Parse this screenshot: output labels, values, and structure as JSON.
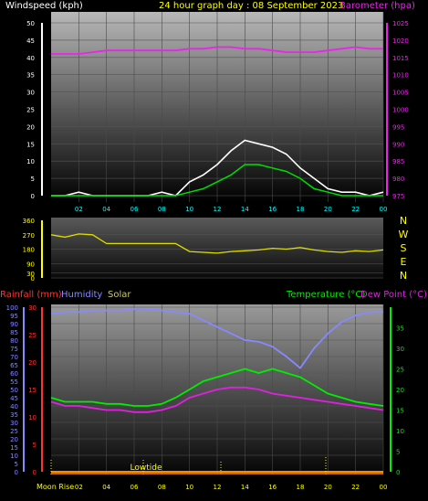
{
  "header": {
    "wind_label": "Windspeed (kph)",
    "title": "24 hour graph day : 08 September 2023",
    "baro_label": "Barometer (hpa)"
  },
  "panel3_labels": {
    "rain": "Rainfall (mm)",
    "humidity": "Humidity",
    "solar": "Solar",
    "temp": "Temperature (°C)",
    "dew": "Dew Point (°C)"
  },
  "x_ticks": [
    "02",
    "04",
    "06",
    "08",
    "10",
    "12",
    "14",
    "16",
    "18",
    "20",
    "22",
    "00"
  ],
  "bottom": {
    "moon_rise": "Moon Rise",
    "lowtide": "Lowtide",
    "x_ticks": [
      "02",
      "04",
      "06",
      "08",
      "10",
      "12",
      "14",
      "16",
      "18",
      "20",
      "22",
      "00"
    ]
  },
  "compass": [
    "N",
    "W",
    "S",
    "E",
    "N"
  ],
  "colors": {
    "wind_avg": "#00dd00",
    "gust": "#ffffff",
    "barometer": "#ee22ee",
    "direction": "#dddd00",
    "rain": "#ff3333",
    "humidity": "#8888ff",
    "solar": "#cccc66",
    "temperature": "#00ee00",
    "dewpoint": "#dd22dd"
  },
  "chart_data": [
    {
      "type": "line",
      "title": "24 hour graph day : 08 September 2023",
      "ylabel": "Windspeed (kph)",
      "y2label": "Barometer (hpa)",
      "ylim": [
        0,
        50
      ],
      "y2lim": [
        975,
        1025
      ],
      "yticks": [
        0,
        5,
        10,
        15,
        20,
        25,
        30,
        35,
        40,
        45,
        50
      ],
      "y2ticks": [
        975,
        980,
        985,
        990,
        995,
        1000,
        1005,
        1010,
        1015,
        1020,
        1025
      ],
      "x_hours": [
        0,
        1,
        2,
        3,
        4,
        5,
        6,
        7,
        8,
        9,
        10,
        11,
        12,
        13,
        14,
        15,
        16,
        17,
        18,
        19,
        20,
        21,
        22,
        23,
        24
      ],
      "series": [
        {
          "name": "Windspeed (kph)",
          "axis": "left",
          "values": [
            0,
            0,
            0,
            0,
            0,
            0,
            0,
            0,
            0,
            0,
            1,
            2,
            4,
            6,
            9,
            9,
            8,
            7,
            5,
            2,
            1,
            0,
            0,
            0,
            0
          ]
        },
        {
          "name": "Gust",
          "axis": "left",
          "values": [
            0,
            0,
            1,
            0,
            0,
            0,
            0,
            0,
            1,
            0,
            4,
            6,
            9,
            13,
            16,
            15,
            14,
            12,
            8,
            5,
            2,
            1,
            1,
            0,
            1
          ]
        },
        {
          "name": "Barometer (hpa)",
          "axis": "right",
          "values": [
            1016,
            1016,
            1016,
            1016.5,
            1017,
            1017,
            1017,
            1017,
            1017,
            1017,
            1017.5,
            1017.5,
            1018,
            1018,
            1017.5,
            1017.5,
            1017,
            1016.5,
            1016.5,
            1016.5,
            1017,
            1017.5,
            1018,
            1017.5,
            1017.5
          ]
        }
      ]
    },
    {
      "type": "line",
      "ylim": [
        0,
        360
      ],
      "yticks": [
        0,
        30,
        90,
        180,
        270,
        360
      ],
      "x_hours": [
        0,
        1,
        2,
        3,
        4,
        5,
        6,
        7,
        8,
        9,
        10,
        11,
        12,
        13,
        14,
        15,
        16,
        17,
        18,
        19,
        20,
        21,
        22,
        23,
        24
      ],
      "series": [
        {
          "name": "Wind direction",
          "values": [
            270,
            255,
            275,
            270,
            215,
            215,
            215,
            215,
            215,
            215,
            165,
            160,
            155,
            165,
            170,
            175,
            185,
            180,
            190,
            175,
            165,
            160,
            170,
            165,
            175
          ]
        }
      ]
    },
    {
      "type": "line",
      "ylim_left": [
        0,
        100
      ],
      "ylim_rain": [
        0,
        30
      ],
      "ylim_right": [
        0,
        40
      ],
      "yticks_left": [
        0,
        5,
        10,
        15,
        20,
        25,
        30,
        35,
        40,
        45,
        50,
        55,
        60,
        65,
        70,
        75,
        80,
        85,
        90,
        95,
        100
      ],
      "yticks_rain": [
        0,
        5,
        10,
        15,
        20,
        25,
        30
      ],
      "yticks_right": [
        0,
        5,
        10,
        15,
        20,
        25,
        30,
        35
      ],
      "x_hours": [
        0,
        1,
        2,
        3,
        4,
        5,
        6,
        7,
        8,
        9,
        10,
        11,
        12,
        13,
        14,
        15,
        16,
        17,
        18,
        19,
        20,
        21,
        22,
        23,
        24
      ],
      "series": [
        {
          "name": "Humidity",
          "axis": "left",
          "values": [
            96,
            97,
            97,
            98,
            98,
            98,
            99,
            99,
            98,
            97,
            96,
            92,
            88,
            84,
            80,
            79,
            76,
            70,
            63,
            75,
            84,
            91,
            95,
            97,
            97
          ]
        },
        {
          "name": "Rainfall (mm)",
          "axis": "rain",
          "values": [
            0,
            0,
            0,
            0,
            0,
            0,
            0,
            0,
            0,
            0,
            0,
            0,
            0,
            0,
            0,
            0,
            0,
            0,
            0,
            0,
            0,
            0,
            0,
            0,
            0
          ]
        },
        {
          "name": "Solar",
          "axis": "left",
          "values": [
            0,
            0,
            0,
            0,
            0,
            0,
            0,
            0,
            0,
            0,
            0,
            0,
            0,
            0,
            0,
            0,
            0,
            0,
            0,
            0,
            0,
            0,
            0,
            0,
            0
          ]
        },
        {
          "name": "Temperature (°C)",
          "axis": "right",
          "values": [
            18,
            17,
            17,
            17,
            16.5,
            16.5,
            16,
            16,
            16.5,
            18,
            20,
            22,
            23,
            24,
            25,
            24,
            25,
            24,
            23,
            21,
            19,
            18,
            17,
            16.5,
            16
          ]
        },
        {
          "name": "Dew Point (°C)",
          "axis": "right",
          "values": [
            17,
            16,
            16,
            15.5,
            15,
            15,
            14.5,
            14.5,
            15,
            16,
            18,
            19,
            20,
            20.5,
            20.5,
            20,
            19,
            18.5,
            18,
            17.5,
            17,
            16.5,
            16,
            15.5,
            15
          ]
        }
      ]
    }
  ]
}
